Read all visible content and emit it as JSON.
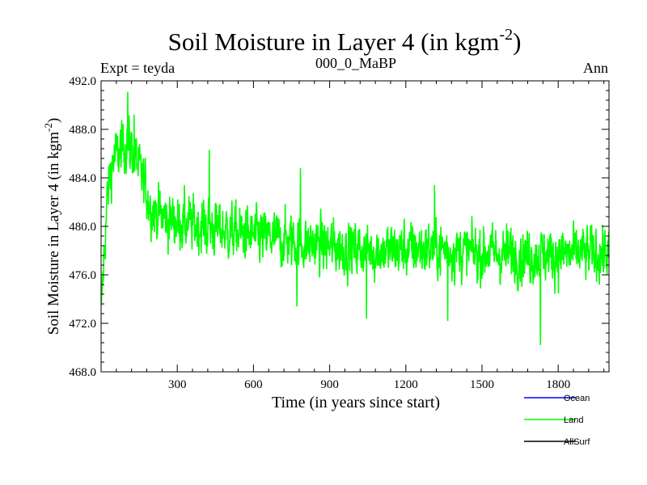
{
  "chart_data": {
    "type": "line",
    "title": {
      "main": "Soil Moisture in Layer 4 (in kgm",
      "sup": "-2",
      "tail": ")"
    },
    "subtitle_left": "Expt = teyda",
    "subtitle_center": "000_0_MaBP",
    "subtitle_right": "Ann",
    "xlabel": "Time (in years since start)",
    "ylabel": {
      "main": "Soil Moisture in Layer 4 (in kgm",
      "sup": "-2",
      "tail": ")"
    },
    "xlim": [
      0,
      2000
    ],
    "ylim": [
      468,
      492
    ],
    "xticks": [
      300,
      600,
      900,
      1200,
      1500,
      1800
    ],
    "yticks": [
      468,
      472,
      476,
      480,
      484,
      488,
      492
    ],
    "ytick_labels": [
      "468.0",
      "472.0",
      "476.0",
      "480.0",
      "484.0",
      "488.0",
      "492.0"
    ],
    "legend": [
      {
        "name": "Ocean",
        "color": "#0000ff"
      },
      {
        "name": "Land",
        "color": "#00ff00"
      },
      {
        "name": "AllSurf",
        "color": "#000000"
      }
    ],
    "series": [
      {
        "name": "Land",
        "color": "#00ff00",
        "x_start": 1,
        "x_step": 1,
        "noise_amplitude": 1.8,
        "trend_points": [
          [
            0,
            472.0
          ],
          [
            10,
            477.0
          ],
          [
            25,
            482.5
          ],
          [
            45,
            485.5
          ],
          [
            70,
            486.0
          ],
          [
            100,
            487.0
          ],
          [
            130,
            486.0
          ],
          [
            160,
            484.0
          ],
          [
            200,
            481.5
          ],
          [
            260,
            480.5
          ],
          [
            350,
            480.2
          ],
          [
            450,
            479.8
          ],
          [
            600,
            479.2
          ],
          [
            750,
            478.8
          ],
          [
            900,
            478.3
          ],
          [
            1100,
            478.0
          ],
          [
            1300,
            478.2
          ],
          [
            1500,
            477.8
          ],
          [
            1700,
            477.6
          ],
          [
            2000,
            477.8
          ]
        ],
        "extremes": [
          [
            105,
            491.1
          ],
          [
            130,
            489.2
          ],
          [
            426,
            486.3
          ],
          [
            785,
            484.8
          ],
          [
            1313,
            483.4
          ],
          [
            1730,
            470.2
          ],
          [
            1045,
            472.4
          ],
          [
            1365,
            472.2
          ],
          [
            771,
            473.4
          ]
        ]
      }
    ]
  }
}
